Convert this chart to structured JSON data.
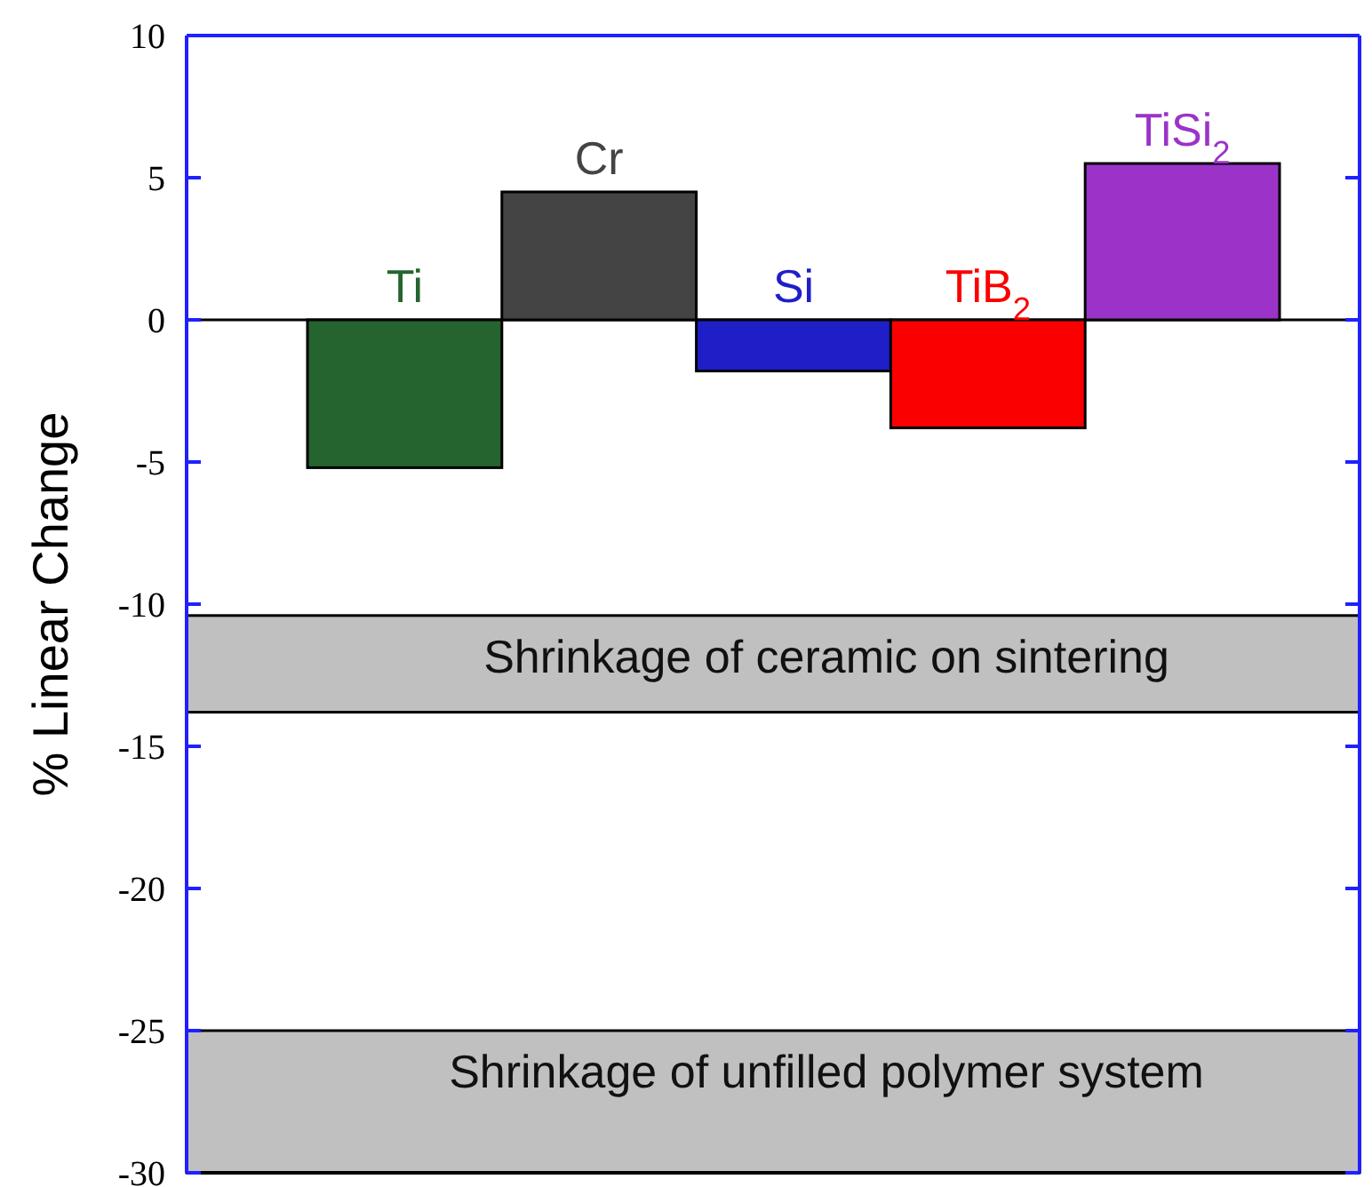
{
  "chart_data": {
    "type": "bar",
    "ylabel": "% Linear Change",
    "categories": [
      "Ti",
      "Cr",
      "Si",
      "TiB$_{2}$",
      "TiSi$_{2}$"
    ],
    "values": [
      -5.2,
      4.5,
      -1.8,
      -3.8,
      5.5
    ],
    "colors": [
      "#25642f",
      "#444444",
      "#1f1fc8",
      "#fa0000",
      "#9b33c8"
    ],
    "ylim": [
      -30,
      10
    ],
    "yticks": [
      -30,
      -25,
      -20,
      -15,
      -10,
      -5,
      0,
      5,
      10
    ],
    "grid": false,
    "bands": [
      {
        "axis": "y",
        "from": -13.8,
        "to": -10.4,
        "label": "Shrinkage of ceramic on sintering",
        "color": "#c0c0c0"
      },
      {
        "axis": "y",
        "from": -30,
        "to": -25,
        "label": "Shrinkage of unfilled polymer system",
        "color": "#c0c0c0"
      }
    ]
  }
}
